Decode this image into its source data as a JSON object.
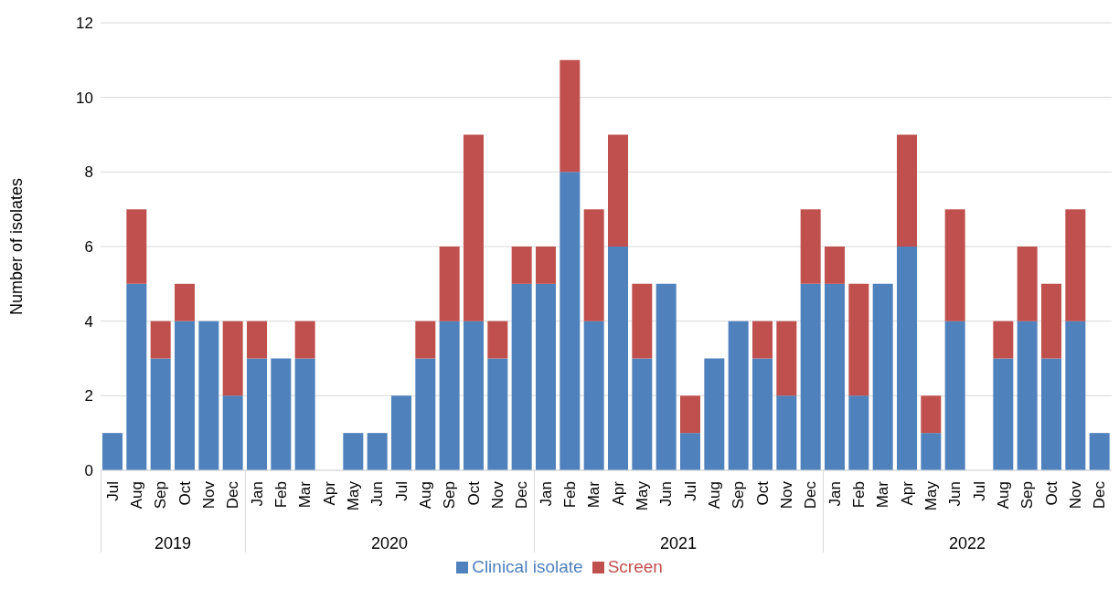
{
  "chart_data": {
    "type": "bar",
    "stacked": true,
    "ylabel": "Number of isolates",
    "ylim": [
      0,
      12
    ],
    "yticks": [
      0,
      2,
      4,
      6,
      8,
      10,
      12
    ],
    "grid": "y",
    "legend": "bottom",
    "categories": [
      "Jul",
      "Aug",
      "Sep",
      "Oct",
      "Nov",
      "Dec",
      "Jan",
      "Feb",
      "Mar",
      "Apr",
      "May",
      "Jun",
      "Jul",
      "Aug",
      "Sep",
      "Oct",
      "Nov",
      "Dec",
      "Jan",
      "Feb",
      "Mar",
      "Apr",
      "May",
      "Jun",
      "Jul",
      "Aug",
      "Sep",
      "Oct",
      "Nov",
      "Dec",
      "Jan",
      "Feb",
      "Mar",
      "Apr",
      "May",
      "Jun",
      "Jul",
      "Aug",
      "Sep",
      "Oct",
      "Nov",
      "Dec"
    ],
    "series": [
      {
        "name": "Clinical isolate",
        "color": "#4f81bd",
        "values": [
          1,
          5,
          3,
          4,
          4,
          2,
          3,
          3,
          3,
          0,
          1,
          1,
          2,
          3,
          4,
          4,
          3,
          5,
          5,
          8,
          4,
          6,
          3,
          5,
          1,
          3,
          4,
          3,
          2,
          5,
          5,
          2,
          5,
          6,
          1,
          4,
          0,
          3,
          4,
          3,
          4,
          1
        ]
      },
      {
        "name": "Screen",
        "color": "#c0504d",
        "values": [
          0,
          2,
          1,
          1,
          0,
          2,
          1,
          0,
          1,
          0,
          0,
          0,
          0,
          1,
          2,
          5,
          1,
          1,
          1,
          3,
          3,
          3,
          2,
          0,
          1,
          0,
          0,
          1,
          2,
          2,
          1,
          3,
          0,
          3,
          1,
          3,
          0,
          1,
          2,
          2,
          3,
          0
        ]
      }
    ],
    "annotations": [
      "2019",
      "2020",
      "2021",
      "2022"
    ]
  }
}
